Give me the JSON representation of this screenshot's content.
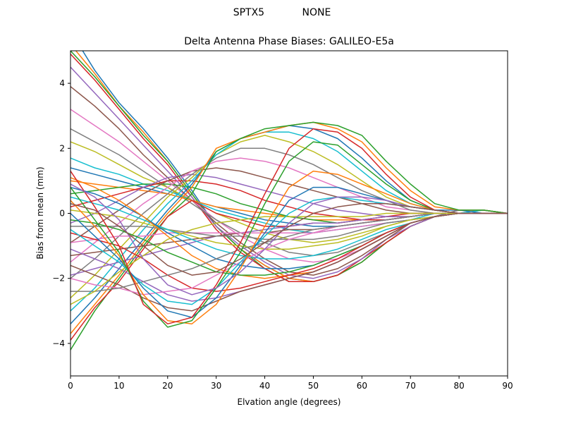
{
  "figure": {
    "suptitle": "SPTX5            NONE"
  },
  "chart_data": {
    "type": "line",
    "title": "Delta Antenna Phase Biases: GALILEO-E5a",
    "xlabel": "Elvation angle (degrees)",
    "ylabel": "Bias from mean (mm)",
    "xlim": [
      0,
      90
    ],
    "ylim": [
      -5,
      5
    ],
    "xticks": [
      0,
      10,
      20,
      30,
      40,
      50,
      60,
      70,
      80,
      90
    ],
    "yticks": [
      -4,
      -2,
      0,
      2,
      4
    ],
    "grid": false,
    "legend": "none",
    "x": [
      0,
      5,
      10,
      15,
      20,
      25,
      30,
      35,
      40,
      45,
      50,
      55,
      60,
      65,
      70,
      75,
      80,
      85,
      90
    ],
    "series_colors": [
      "#1f77b4",
      "#ff7f0e",
      "#2ca02c",
      "#d62728",
      "#9467bd",
      "#8c564b",
      "#e377c2",
      "#7f7f7f",
      "#bcbd22",
      "#17becf"
    ],
    "series": [
      {
        "values": [
          5.6,
          4.4,
          3.4,
          2.6,
          1.7,
          0.7,
          -0.4,
          -1.1,
          -1.6,
          -2.0,
          -2.1,
          -1.9,
          -1.5,
          -0.9,
          -0.4,
          -0.1,
          0.1,
          0.1,
          0.0
        ]
      },
      {
        "values": [
          5.2,
          4.3,
          3.3,
          2.5,
          1.6,
          0.6,
          -0.4,
          -1.1,
          -1.6,
          -2.0,
          -2.1,
          -1.9,
          -1.5,
          -0.9,
          -0.4,
          -0.1,
          0.1,
          0.1,
          0.0
        ]
      },
      {
        "values": [
          5.0,
          4.2,
          3.3,
          2.4,
          1.6,
          0.6,
          -0.4,
          -1.1,
          -1.7,
          -2.1,
          -2.1,
          -1.9,
          -1.5,
          -0.9,
          -0.4,
          -0.1,
          0.1,
          0.1,
          0.0
        ]
      },
      {
        "values": [
          4.9,
          4.1,
          3.2,
          2.3,
          1.5,
          0.5,
          -0.5,
          -1.2,
          -1.7,
          -2.1,
          -2.1,
          -1.9,
          -1.4,
          -0.9,
          -0.4,
          -0.1,
          0.1,
          0.1,
          0.0
        ]
      },
      {
        "values": [
          4.5,
          3.7,
          2.9,
          2.1,
          1.3,
          0.5,
          -0.4,
          -1.0,
          -1.5,
          -1.9,
          -2.0,
          -1.8,
          -1.4,
          -0.8,
          -0.4,
          -0.1,
          0.1,
          0.1,
          0.0
        ]
      },
      {
        "values": [
          3.9,
          3.3,
          2.6,
          1.8,
          1.1,
          0.4,
          -0.3,
          -0.9,
          -1.4,
          -1.8,
          -1.9,
          -1.7,
          -1.3,
          -0.8,
          -0.3,
          -0.1,
          0.1,
          0.1,
          0.0
        ]
      },
      {
        "values": [
          3.2,
          2.7,
          2.2,
          1.6,
          1.0,
          0.4,
          -0.2,
          -0.7,
          -1.1,
          -1.4,
          -1.5,
          -1.4,
          -1.1,
          -0.7,
          -0.3,
          -0.1,
          0.1,
          0.1,
          0.0
        ]
      },
      {
        "values": [
          2.6,
          2.2,
          1.8,
          1.3,
          0.8,
          0.3,
          -0.2,
          -0.6,
          -0.9,
          -1.2,
          -1.3,
          -1.2,
          -0.9,
          -0.6,
          -0.3,
          -0.1,
          0.1,
          0.1,
          0.0
        ]
      },
      {
        "values": [
          2.2,
          1.9,
          1.5,
          1.1,
          0.8,
          0.4,
          0.0,
          -0.3,
          -0.6,
          -0.8,
          -0.9,
          -0.8,
          -0.6,
          -0.4,
          -0.2,
          -0.1,
          0.0,
          0.1,
          0.0
        ]
      },
      {
        "values": [
          1.7,
          1.4,
          1.2,
          0.9,
          0.7,
          0.4,
          0.1,
          -0.1,
          -0.3,
          -0.5,
          -0.6,
          -0.5,
          -0.4,
          -0.3,
          -0.2,
          0.0,
          0.0,
          0.1,
          0.0
        ]
      },
      {
        "values": [
          1.4,
          1.2,
          1.0,
          0.8,
          0.6,
          0.4,
          0.2,
          0.0,
          -0.2,
          -0.3,
          -0.4,
          -0.4,
          -0.3,
          -0.2,
          -0.1,
          0.0,
          0.0,
          0.0,
          0.0
        ]
      },
      {
        "values": [
          1.0,
          0.9,
          0.8,
          0.7,
          0.6,
          0.4,
          0.2,
          0.1,
          0.0,
          -0.1,
          -0.2,
          -0.2,
          -0.2,
          -0.1,
          -0.1,
          0.0,
          0.0,
          0.0,
          0.0
        ]
      },
      {
        "values": [
          0.6,
          0.7,
          0.8,
          0.9,
          0.9,
          0.8,
          0.6,
          0.3,
          0.1,
          -0.1,
          -0.2,
          -0.3,
          -0.2,
          -0.2,
          -0.1,
          0.0,
          0.0,
          0.0,
          0.0
        ]
      },
      {
        "values": [
          0.2,
          0.4,
          0.6,
          0.8,
          1.0,
          1.0,
          0.9,
          0.7,
          0.4,
          0.2,
          0.0,
          -0.1,
          -0.2,
          -0.2,
          -0.1,
          0.0,
          0.0,
          0.0,
          0.0
        ]
      },
      {
        "values": [
          -0.3,
          0.0,
          0.4,
          0.8,
          1.1,
          1.2,
          1.1,
          0.9,
          0.7,
          0.5,
          0.3,
          0.1,
          0.0,
          -0.1,
          -0.1,
          0.0,
          0.0,
          0.0,
          0.0
        ]
      },
      {
        "values": [
          -0.9,
          -0.4,
          0.1,
          0.6,
          1.0,
          1.3,
          1.4,
          1.3,
          1.1,
          0.9,
          0.7,
          0.5,
          0.3,
          0.1,
          0.0,
          0.0,
          0.0,
          0.0,
          0.0
        ]
      },
      {
        "values": [
          -1.5,
          -0.9,
          -0.3,
          0.3,
          0.8,
          1.3,
          1.6,
          1.7,
          1.6,
          1.4,
          1.1,
          0.8,
          0.5,
          0.2,
          0.1,
          0.0,
          0.0,
          0.0,
          0.0
        ]
      },
      {
        "values": [
          -2.0,
          -1.4,
          -0.7,
          0.0,
          0.6,
          1.2,
          1.7,
          2.0,
          2.0,
          1.8,
          1.5,
          1.1,
          0.7,
          0.4,
          0.1,
          0.0,
          0.0,
          0.0,
          0.0
        ]
      },
      {
        "values": [
          -2.6,
          -1.9,
          -1.1,
          -0.3,
          0.5,
          1.1,
          1.8,
          2.2,
          2.4,
          2.2,
          1.9,
          1.5,
          1.0,
          0.5,
          0.2,
          0.1,
          0.0,
          0.0,
          0.0
        ]
      },
      {
        "values": [
          -3.0,
          -2.3,
          -1.4,
          -0.5,
          0.3,
          1.0,
          1.8,
          2.3,
          2.5,
          2.5,
          2.3,
          1.9,
          1.3,
          0.7,
          0.3,
          0.1,
          0.0,
          0.0,
          0.0
        ]
      },
      {
        "values": [
          -3.4,
          -2.6,
          -1.7,
          -0.8,
          0.1,
          0.9,
          1.9,
          2.3,
          2.5,
          2.7,
          2.6,
          2.3,
          1.7,
          1.0,
          0.4,
          0.1,
          0.1,
          0.0,
          0.0
        ]
      },
      {
        "values": [
          -3.7,
          -2.8,
          -1.9,
          -0.9,
          0.0,
          0.8,
          2.0,
          2.3,
          2.5,
          2.7,
          2.8,
          2.6,
          2.2,
          1.4,
          0.7,
          0.2,
          0.1,
          0.1,
          0.0
        ]
      },
      {
        "values": [
          -4.2,
          -3.0,
          -2.0,
          -1.0,
          -0.1,
          0.6,
          1.9,
          2.3,
          2.6,
          2.7,
          2.8,
          2.7,
          2.4,
          1.6,
          0.9,
          0.3,
          0.1,
          0.1,
          0.0
        ]
      },
      {
        "values": [
          -3.9,
          -2.9,
          -2.1,
          -1.1,
          -0.1,
          0.4,
          0.0,
          -0.2,
          -0.4,
          -0.4,
          -0.3,
          -0.3,
          -0.2,
          -0.1,
          0.0,
          0.0,
          0.0,
          0.0,
          0.0
        ]
      },
      {
        "values": [
          -1.9,
          -1.7,
          -1.5,
          -1.3,
          -1.1,
          -0.9,
          -0.7,
          -0.6,
          -0.5,
          -0.4,
          -0.3,
          -0.3,
          -0.2,
          -0.1,
          -0.1,
          0.0,
          0.0,
          0.0,
          0.0
        ]
      },
      {
        "values": [
          -1.3,
          -1.2,
          -1.1,
          -1.0,
          -0.9,
          -0.8,
          -0.7,
          -0.6,
          -0.6,
          -0.5,
          -0.5,
          -0.4,
          -0.3,
          -0.2,
          -0.1,
          0.0,
          0.0,
          0.0,
          0.0
        ]
      },
      {
        "values": [
          -0.9,
          -0.8,
          -0.7,
          -0.7,
          -0.6,
          -0.6,
          -0.6,
          -0.6,
          -0.6,
          -0.6,
          -0.6,
          -0.5,
          -0.4,
          -0.3,
          -0.2,
          -0.1,
          0.0,
          0.0,
          0.0
        ]
      },
      {
        "values": [
          -0.4,
          -0.4,
          -0.4,
          -0.4,
          -0.5,
          -0.6,
          -0.7,
          -0.7,
          -0.8,
          -0.8,
          -0.8,
          -0.7,
          -0.5,
          -0.3,
          -0.2,
          -0.1,
          0.0,
          0.0,
          0.0
        ]
      },
      {
        "values": [
          0.1,
          0.0,
          -0.1,
          -0.3,
          -0.5,
          -0.7,
          -0.9,
          -1.0,
          -1.1,
          -1.1,
          -1.0,
          -0.9,
          -0.7,
          -0.4,
          -0.2,
          -0.1,
          0.0,
          0.0,
          0.0
        ]
      },
      {
        "values": [
          0.5,
          0.3,
          0.1,
          -0.2,
          -0.5,
          -0.8,
          -1.1,
          -1.3,
          -1.4,
          -1.4,
          -1.3,
          -1.1,
          -0.8,
          -0.5,
          -0.3,
          -0.1,
          0.0,
          0.0,
          0.0
        ]
      },
      {
        "values": [
          0.8,
          0.6,
          0.3,
          -0.1,
          -0.6,
          -1.0,
          -1.4,
          -1.6,
          -1.7,
          -1.7,
          -1.6,
          -1.3,
          -1.0,
          -0.6,
          -0.3,
          -0.1,
          0.0,
          0.0,
          0.0
        ]
      },
      {
        "values": [
          1.1,
          0.8,
          0.4,
          -0.1,
          -0.7,
          -1.3,
          -1.7,
          -1.9,
          -2.0,
          -1.9,
          -1.8,
          -1.5,
          -1.1,
          -0.7,
          -0.3,
          -0.1,
          0.0,
          0.0,
          0.0
        ]
      },
      {
        "values": [
          -0.2,
          -0.3,
          -0.5,
          -0.8,
          -1.2,
          -1.5,
          -1.8,
          -1.9,
          -1.9,
          -1.8,
          -1.6,
          -1.3,
          -1.0,
          -0.6,
          -0.3,
          -0.1,
          0.0,
          0.0,
          0.0
        ]
      },
      {
        "values": [
          -0.6,
          -0.8,
          -1.0,
          -1.4,
          -1.9,
          -2.3,
          -2.4,
          -2.3,
          -2.1,
          -1.9,
          -1.7,
          -1.4,
          -1.0,
          -0.6,
          -0.3,
          -0.1,
          0.0,
          0.0,
          0.0
        ]
      },
      {
        "values": [
          -1.1,
          -1.4,
          -1.7,
          -2.1,
          -2.5,
          -2.7,
          -2.6,
          -2.4,
          -2.2,
          -2.0,
          -1.8,
          -1.5,
          -1.1,
          -0.7,
          -0.3,
          -0.1,
          0.0,
          0.0,
          0.0
        ]
      },
      {
        "values": [
          -1.6,
          -1.9,
          -2.2,
          -2.6,
          -2.9,
          -3.0,
          -2.7,
          -2.4,
          -2.2,
          -2.0,
          -1.8,
          -1.5,
          -1.1,
          -0.7,
          -0.3,
          -0.1,
          0.0,
          0.0,
          0.0
        ]
      },
      {
        "values": [
          -2.0,
          -2.2,
          -2.3,
          -2.5,
          -2.4,
          -2.3,
          -1.9,
          -1.5,
          -1.1,
          -0.8,
          -0.6,
          -0.4,
          -0.3,
          -0.2,
          -0.1,
          0.0,
          0.0,
          0.0,
          0.0
        ]
      },
      {
        "values": [
          -2.4,
          -2.4,
          -2.3,
          -2.1,
          -1.9,
          -1.7,
          -1.4,
          -1.1,
          -0.9,
          -0.7,
          -0.5,
          -0.4,
          -0.3,
          -0.2,
          -0.1,
          0.0,
          0.0,
          0.0,
          0.0
        ]
      },
      {
        "values": [
          -2.8,
          -2.4,
          -1.8,
          -1.3,
          -0.8,
          -0.5,
          -0.3,
          -0.2,
          -0.1,
          -0.1,
          -0.1,
          -0.1,
          -0.1,
          0.0,
          0.0,
          0.0,
          0.0,
          0.0,
          0.0
        ]
      },
      {
        "values": [
          -0.5,
          -1.0,
          -1.5,
          -2.2,
          -2.7,
          -2.8,
          -2.3,
          -1.5,
          -0.7,
          0.0,
          0.4,
          0.5,
          0.4,
          0.3,
          0.2,
          0.1,
          0.0,
          0.0,
          0.0
        ]
      },
      {
        "values": [
          0.0,
          -0.7,
          -1.4,
          -2.3,
          -3.0,
          -3.2,
          -2.6,
          -1.6,
          -0.6,
          0.4,
          0.8,
          0.8,
          0.6,
          0.4,
          0.2,
          0.1,
          0.0,
          0.0,
          0.0
        ]
      },
      {
        "values": [
          0.4,
          -0.4,
          -1.3,
          -2.5,
          -3.3,
          -3.4,
          -2.8,
          -1.7,
          -0.4,
          0.8,
          1.3,
          1.2,
          0.9,
          0.6,
          0.3,
          0.1,
          0.0,
          0.0,
          0.0
        ]
      },
      {
        "values": [
          0.8,
          -0.2,
          -1.2,
          -2.7,
          -3.5,
          -3.3,
          -2.3,
          -1.2,
          0.3,
          1.6,
          2.2,
          2.1,
          1.5,
          0.9,
          0.4,
          0.1,
          0.0,
          0.0,
          0.0
        ]
      },
      {
        "values": [
          1.3,
          0.2,
          -1.0,
          -2.8,
          -3.4,
          -3.2,
          -2.2,
          -0.9,
          0.6,
          2.0,
          2.6,
          2.5,
          2.0,
          1.2,
          0.5,
          0.1,
          0.0,
          0.0,
          0.0
        ]
      },
      {
        "values": [
          0.9,
          0.5,
          -0.2,
          -1.4,
          -2.2,
          -2.5,
          -2.3,
          -1.8,
          -1.1,
          -0.3,
          0.3,
          0.5,
          0.5,
          0.4,
          0.2,
          0.1,
          0.0,
          0.0,
          0.0
        ]
      },
      {
        "values": [
          0.3,
          0.1,
          -0.4,
          -1.0,
          -1.6,
          -1.9,
          -1.8,
          -1.4,
          -0.9,
          -0.4,
          0.0,
          0.2,
          0.3,
          0.3,
          0.2,
          0.1,
          0.0,
          0.0,
          0.0
        ]
      }
    ]
  }
}
